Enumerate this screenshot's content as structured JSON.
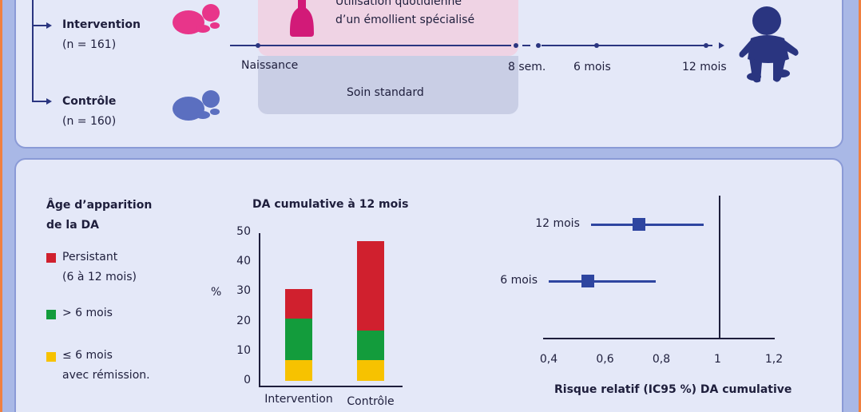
{
  "design": {
    "intervention_label": "Intervention",
    "intervention_n": "(n = 161)",
    "control_label": "Contrôle",
    "control_n": "(n = 160)",
    "emollient_line1": "Utilisation quotidienne",
    "emollient_line2": "d’un émollient spécialisé",
    "standard_care": "Soin standard",
    "timepoints": [
      "Naissance",
      "8 sem.",
      "6 mois",
      "12 mois"
    ],
    "colors": {
      "intervention_baby": "#e8358a",
      "control_baby": "#5b6fc0",
      "bottle": "#d21a78",
      "child": "#2a3580"
    }
  },
  "legend": {
    "title_line1": "Âge d’apparition",
    "title_line2": "de la DA",
    "items": [
      {
        "line1": "Persistant",
        "line2": "(6 à 12 mois)",
        "color": "#d0202e"
      },
      {
        "line1": "> 6 mois",
        "line2": "",
        "color": "#139c3c"
      },
      {
        "line1": "≤ 6 mois",
        "line2": "avec rémission.",
        "color": "#f7c200"
      }
    ]
  },
  "bar_chart": {
    "title": "DA cumulative à 12 mois",
    "ylabel": "%"
  },
  "forest": {
    "xlabel": "Risque relatif (IC95 %) DA cumulative"
  },
  "chart_data": [
    {
      "type": "bar",
      "stacked": true,
      "title": "DA cumulative à 12 mois",
      "ylabel": "%",
      "ylim": [
        0,
        50
      ],
      "yticks": [
        0,
        10,
        20,
        30,
        40,
        50
      ],
      "categories": [
        "Intervention",
        "Contrôle"
      ],
      "series": [
        {
          "name": "≤ 6 mois avec rémission.",
          "color": "#f7c200",
          "values": [
            7,
            7
          ]
        },
        {
          "name": "> 6 mois",
          "color": "#139c3c",
          "values": [
            14,
            10
          ]
        },
        {
          "name": "Persistant (6 à 12 mois)",
          "color": "#d0202e",
          "values": [
            10,
            30
          ]
        }
      ]
    },
    {
      "type": "scatter",
      "xlabel": "Risque relatif (IC95 %) DA cumulative",
      "xlim": [
        0.4,
        1.2
      ],
      "xticks": [
        "0,4",
        "0,6",
        "0,8",
        "1",
        "1,2"
      ],
      "xtick_values": [
        0.4,
        0.6,
        0.8,
        1.0,
        1.2
      ],
      "reference_line": 1.0,
      "points": [
        {
          "label": "12 mois",
          "estimate": 0.72,
          "ci_low": 0.55,
          "ci_high": 0.95
        },
        {
          "label": "6 mois",
          "estimate": 0.54,
          "ci_low": 0.4,
          "ci_high": 0.78
        }
      ]
    }
  ]
}
